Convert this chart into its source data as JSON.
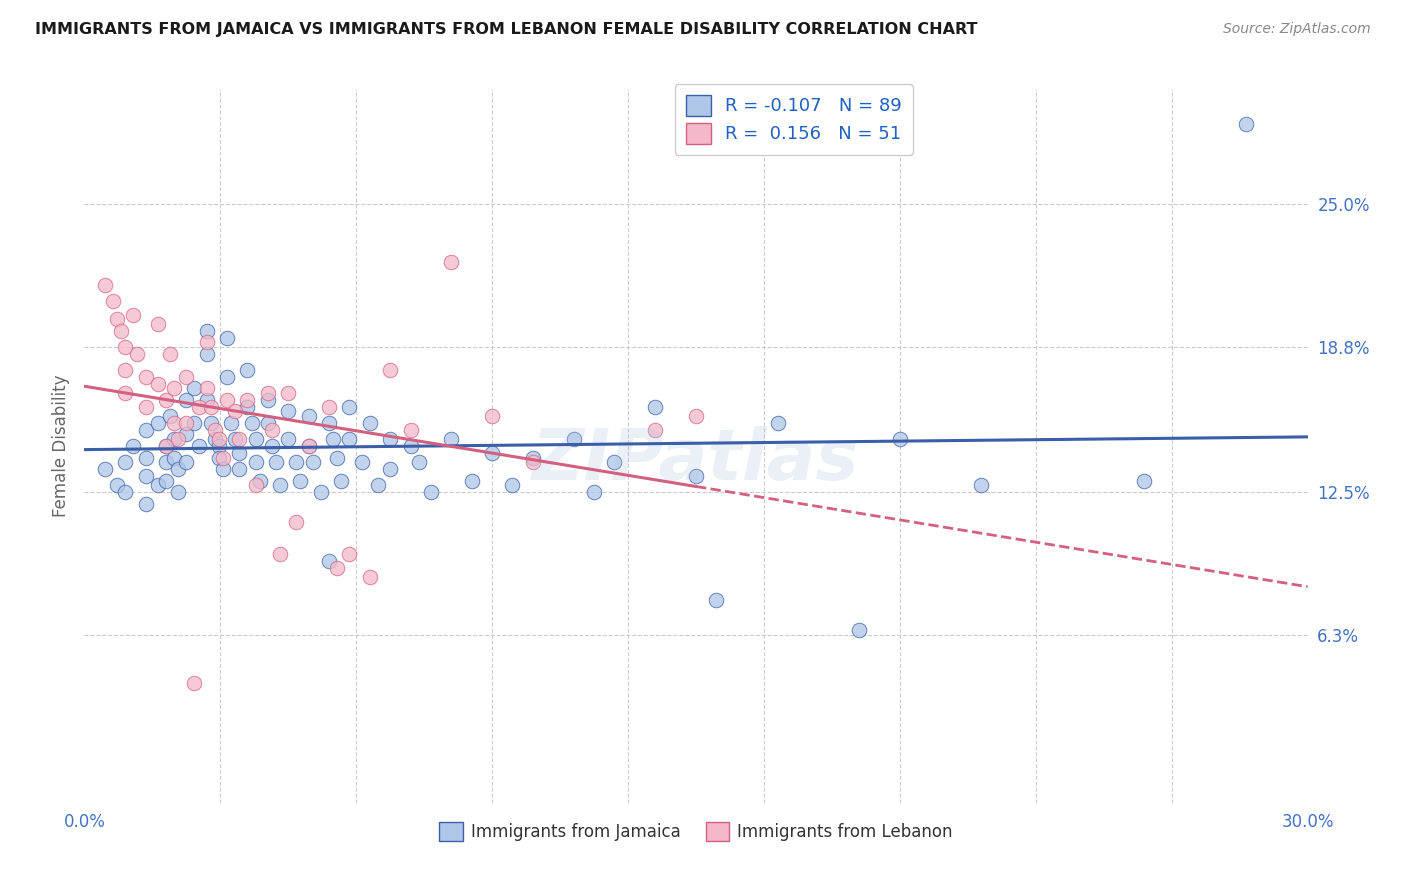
{
  "title": "IMMIGRANTS FROM JAMAICA VS IMMIGRANTS FROM LEBANON FEMALE DISABILITY CORRELATION CHART",
  "source": "Source: ZipAtlas.com",
  "ylabel": "Female Disability",
  "right_yticks": [
    "25.0%",
    "18.8%",
    "12.5%",
    "6.3%"
  ],
  "right_ytick_vals": [
    0.25,
    0.188,
    0.125,
    0.063
  ],
  "xlim": [
    0.0,
    0.3
  ],
  "ylim": [
    -0.01,
    0.3
  ],
  "jamaica_color": "#aec6e8",
  "lebanon_color": "#f4b8c8",
  "jamaica_line_color": "#3a5fa8",
  "lebanon_line_color": "#d46080",
  "jamaica_scatter_x": [
    0.005,
    0.008,
    0.01,
    0.01,
    0.012,
    0.015,
    0.015,
    0.015,
    0.015,
    0.018,
    0.018,
    0.02,
    0.02,
    0.02,
    0.021,
    0.022,
    0.022,
    0.023,
    0.023,
    0.025,
    0.025,
    0.025,
    0.027,
    0.027,
    0.028,
    0.03,
    0.03,
    0.03,
    0.031,
    0.032,
    0.033,
    0.033,
    0.034,
    0.035,
    0.035,
    0.036,
    0.037,
    0.038,
    0.038,
    0.04,
    0.04,
    0.041,
    0.042,
    0.042,
    0.043,
    0.045,
    0.045,
    0.046,
    0.047,
    0.048,
    0.05,
    0.05,
    0.052,
    0.053,
    0.055,
    0.055,
    0.056,
    0.058,
    0.06,
    0.06,
    0.061,
    0.062,
    0.063,
    0.065,
    0.065,
    0.068,
    0.07,
    0.072,
    0.075,
    0.075,
    0.08,
    0.082,
    0.085,
    0.09,
    0.095,
    0.1,
    0.105,
    0.11,
    0.12,
    0.125,
    0.13,
    0.14,
    0.15,
    0.155,
    0.17,
    0.19,
    0.2,
    0.22,
    0.26,
    0.285
  ],
  "jamaica_scatter_y": [
    0.135,
    0.128,
    0.138,
    0.125,
    0.145,
    0.152,
    0.14,
    0.132,
    0.12,
    0.155,
    0.128,
    0.145,
    0.138,
    0.13,
    0.158,
    0.148,
    0.14,
    0.135,
    0.125,
    0.165,
    0.15,
    0.138,
    0.17,
    0.155,
    0.145,
    0.195,
    0.185,
    0.165,
    0.155,
    0.148,
    0.145,
    0.14,
    0.135,
    0.192,
    0.175,
    0.155,
    0.148,
    0.142,
    0.135,
    0.178,
    0.162,
    0.155,
    0.148,
    0.138,
    0.13,
    0.165,
    0.155,
    0.145,
    0.138,
    0.128,
    0.16,
    0.148,
    0.138,
    0.13,
    0.158,
    0.145,
    0.138,
    0.125,
    0.095,
    0.155,
    0.148,
    0.14,
    0.13,
    0.162,
    0.148,
    0.138,
    0.155,
    0.128,
    0.148,
    0.135,
    0.145,
    0.138,
    0.125,
    0.148,
    0.13,
    0.142,
    0.128,
    0.14,
    0.148,
    0.125,
    0.138,
    0.162,
    0.132,
    0.078,
    0.155,
    0.065,
    0.148,
    0.128,
    0.13,
    0.285
  ],
  "lebanon_scatter_x": [
    0.005,
    0.007,
    0.008,
    0.009,
    0.01,
    0.01,
    0.01,
    0.012,
    0.013,
    0.015,
    0.015,
    0.018,
    0.018,
    0.02,
    0.02,
    0.021,
    0.022,
    0.022,
    0.023,
    0.025,
    0.025,
    0.027,
    0.028,
    0.03,
    0.03,
    0.031,
    0.032,
    0.033,
    0.034,
    0.035,
    0.037,
    0.038,
    0.04,
    0.042,
    0.045,
    0.046,
    0.048,
    0.05,
    0.052,
    0.055,
    0.06,
    0.062,
    0.065,
    0.07,
    0.075,
    0.08,
    0.09,
    0.1,
    0.11,
    0.14,
    0.15
  ],
  "lebanon_scatter_y": [
    0.215,
    0.208,
    0.2,
    0.195,
    0.188,
    0.178,
    0.168,
    0.202,
    0.185,
    0.175,
    0.162,
    0.198,
    0.172,
    0.165,
    0.145,
    0.185,
    0.17,
    0.155,
    0.148,
    0.175,
    0.155,
    0.042,
    0.162,
    0.19,
    0.17,
    0.162,
    0.152,
    0.148,
    0.14,
    0.165,
    0.16,
    0.148,
    0.165,
    0.128,
    0.168,
    0.152,
    0.098,
    0.168,
    0.112,
    0.145,
    0.162,
    0.092,
    0.098,
    0.088,
    0.178,
    0.152,
    0.225,
    0.158,
    0.138,
    0.152,
    0.158
  ],
  "jamaica_R": -0.107,
  "lebanon_R": 0.156,
  "background_color": "#ffffff",
  "grid_color": "#cccccc",
  "watermark": "ZIPatlas"
}
